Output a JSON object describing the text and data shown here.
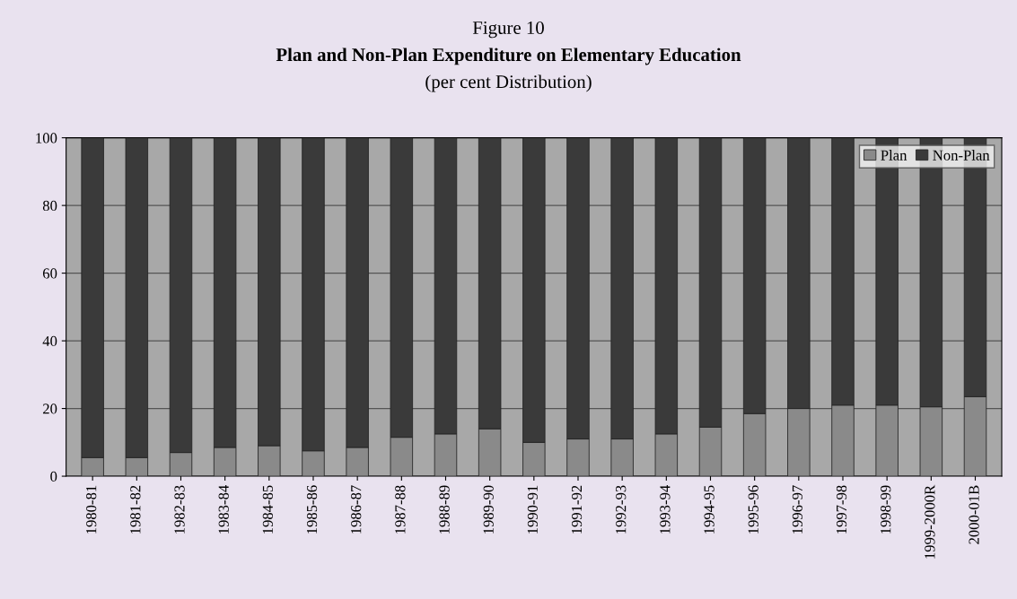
{
  "chart_data": {
    "type": "bar",
    "stacked": true,
    "title": "Plan and Non-Plan Expenditure on Elementary Education",
    "subtitle": "(per cent Distribution)",
    "annotations": [
      "Figure 10"
    ],
    "categories": [
      "1980-81",
      "1981-82",
      "1982-83",
      "1983-84",
      "1984-85",
      "1985-86",
      "1986-87",
      "1987-88",
      "1988-89",
      "1989-90",
      "1990-91",
      "1991-92",
      "1992-93",
      "1993-94",
      "1994-95",
      "1995-96",
      "1996-97",
      "1997-98",
      "1998-99",
      "1999-2000R",
      "2000-01B"
    ],
    "series": [
      {
        "name": "Plan",
        "color": "#8a8a8a",
        "values": [
          5.5,
          5.5,
          7,
          8.5,
          9,
          7.5,
          8.5,
          11.5,
          12.5,
          14,
          10,
          11,
          11,
          12.5,
          14.5,
          18.5,
          20,
          21,
          21,
          20.5,
          23.5
        ]
      },
      {
        "name": "Non-Plan",
        "color": "#3a3a3a",
        "values": [
          94.5,
          94.5,
          93,
          91.5,
          91,
          92.5,
          91.5,
          88.5,
          87.5,
          86,
          90,
          89,
          89,
          87.5,
          85.5,
          81.5,
          80,
          79,
          79,
          79.5,
          76.5
        ]
      }
    ],
    "ylim": [
      0,
      100
    ],
    "yticks": [
      0,
      20,
      40,
      60,
      80,
      100
    ],
    "grid": "y",
    "legend": "top right"
  }
}
